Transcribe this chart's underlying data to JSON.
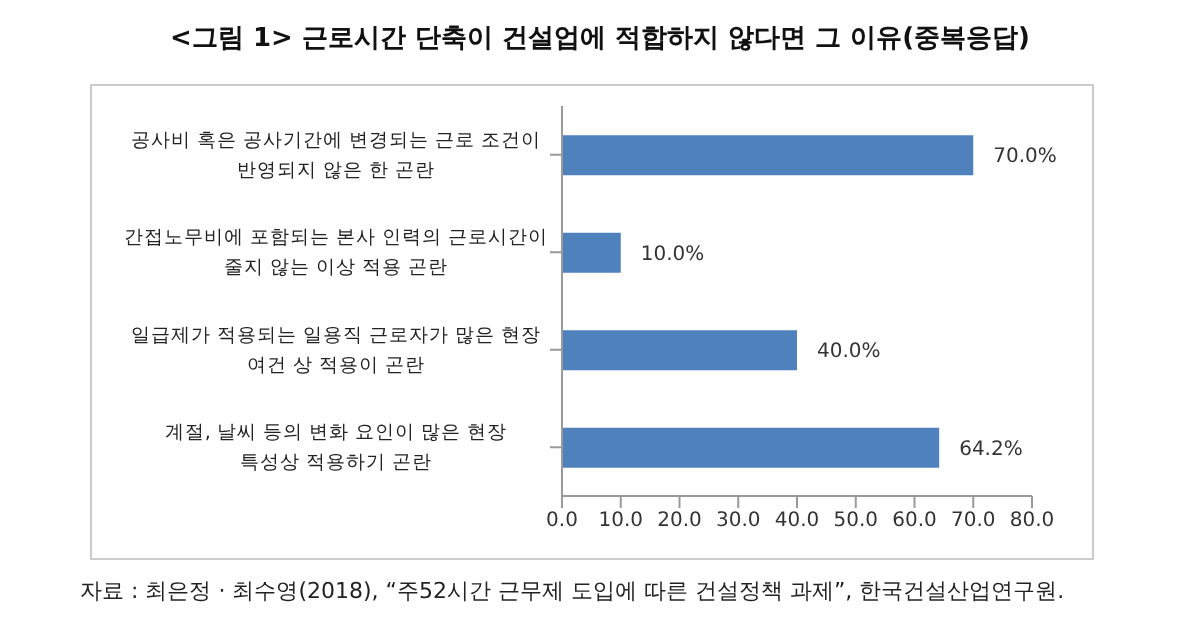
{
  "chart_data": {
    "type": "bar",
    "orientation": "horizontal",
    "title": "<그림 1> 근로시간 단축이 건설업에 적합하지 않다면 그 이유(중복응답)",
    "categories": [
      "공사비 혹은 공사기간에 변경되는 근로 조건이 반영되지 않은 한 곤란",
      "간접노무비에 포함되는 본사 인력의 근로시간이 줄지 않는 이상 적용 곤란",
      "일급제가 적용되는 일용직 근로자가 많은 현장 여건 상 적용이 곤란",
      "계절, 날씨 등의 변화 요인이 많은 현장 특성상 적용하기 곤란"
    ],
    "values": [
      70,
      10,
      40,
      64.2
    ],
    "color": "#4f81bd",
    "value_labels": [
      "70.0%",
      "10.0%",
      "40.0%",
      "64.2%"
    ],
    "xlim": [
      0,
      80
    ],
    "xticks": [
      {
        "value": 0,
        "label": "0.0"
      },
      {
        "value": 10,
        "label": "10.0"
      },
      {
        "value": 20,
        "label": "20.0"
      },
      {
        "value": 30,
        "label": "30.0"
      },
      {
        "value": 40,
        "label": "40.0"
      },
      {
        "value": 50,
        "label": "50.0"
      },
      {
        "value": 60,
        "label": "60.0"
      },
      {
        "value": 70,
        "label": "70.0"
      },
      {
        "value": 80,
        "label": "80.0"
      }
    ],
    "grid": false,
    "legend": false,
    "annotations": [
      "자료 : 최은정 · 최수영(2018), “주52시간 근무제 도입에 따른 건설정책 과제”, 한국건설산업연구원."
    ]
  }
}
